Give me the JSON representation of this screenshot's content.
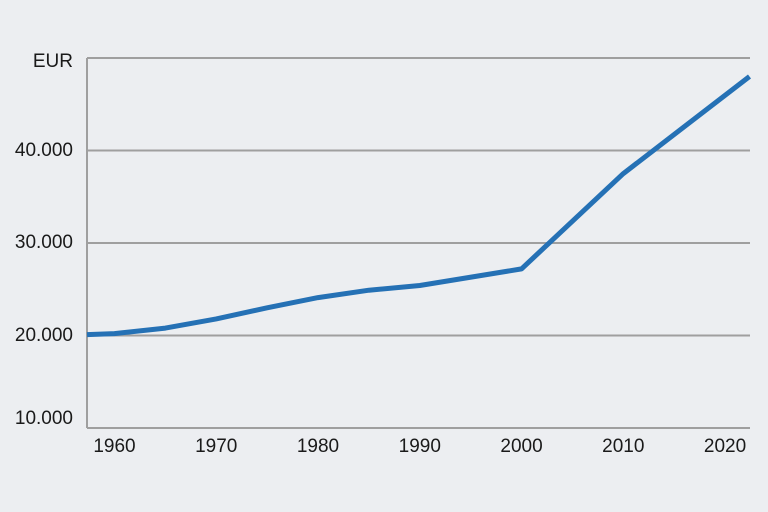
{
  "chart": {
    "colors": {
      "background": "#eceef1",
      "line": "#2571b5",
      "grid": "#9f9f9f",
      "border": "#9f9f9f",
      "text": "#1a1a1a"
    }
  },
  "chart_data": {
    "type": "line",
    "title": "",
    "xlabel": "",
    "ylabel": "EUR",
    "unit_label": "EUR",
    "x": [
      1957.3,
      1960,
      1965,
      1970,
      1975,
      1980,
      1985,
      1990,
      2000,
      2010,
      2022.4
    ],
    "series": [
      {
        "name": "EUR",
        "values": [
          20100,
          20200,
          20800,
          21800,
          23000,
          24100,
          24900,
          25400,
          27200,
          37500,
          48000
        ]
      }
    ],
    "xlim": [
      1957.3,
      2022.45
    ],
    "ylim": [
      10000,
      50000
    ],
    "y_ticks": [
      {
        "value": 10000,
        "label": "10.000"
      },
      {
        "value": 20000,
        "label": "20.000"
      },
      {
        "value": 30000,
        "label": "30.000"
      },
      {
        "value": 40000,
        "label": "40.000"
      }
    ],
    "x_ticks": [
      {
        "value": 1960,
        "label": "1960"
      },
      {
        "value": 1970,
        "label": "1970"
      },
      {
        "value": 1980,
        "label": "1980"
      },
      {
        "value": 1990,
        "label": "1990"
      },
      {
        "value": 2000,
        "label": "2000"
      },
      {
        "value": 2010,
        "label": "2010"
      },
      {
        "value": 2020,
        "label": "2020"
      }
    ],
    "grid": "horizontal",
    "legend": "none"
  }
}
